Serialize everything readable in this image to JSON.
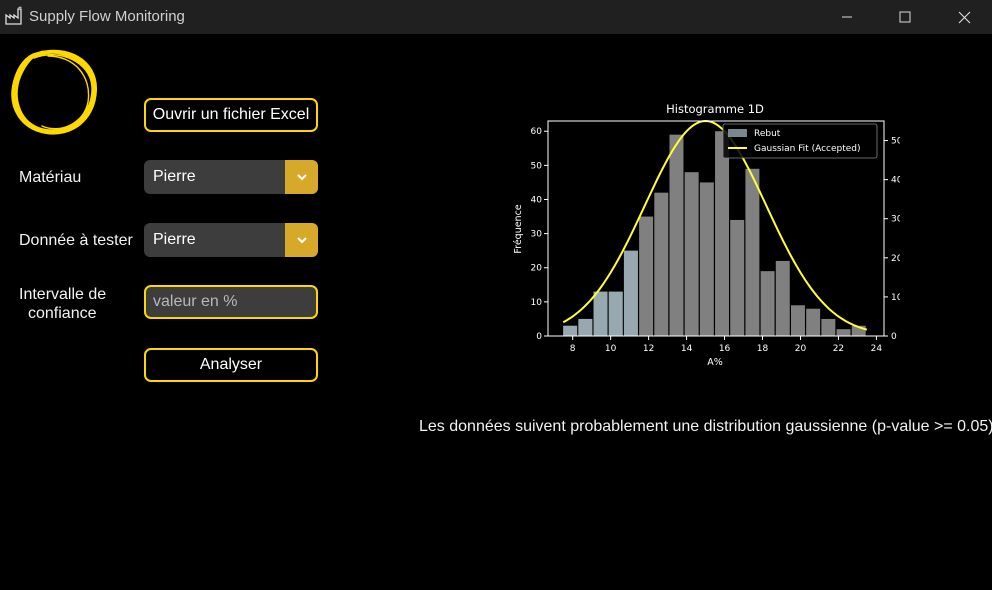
{
  "window": {
    "title": "Supply Flow Monitoring",
    "controls": [
      "minimize",
      "maximize",
      "close"
    ]
  },
  "form": {
    "open_excel_label": "Ouvrir un fichier Excel",
    "material_label": "Matériau",
    "material_value": "Pierre",
    "data_label": "Donnée à tester",
    "data_value": "Pierre",
    "interval_label_line1": "Intervalle de",
    "interval_label_line2": "confiance",
    "interval_placeholder": "valeur en %",
    "analyze_label": "Analyser"
  },
  "colors": {
    "accent": "#ffd700",
    "combo_arrow": "#d7a92a",
    "bar_main": "#808080",
    "bar_rebut": "#9fb6c0",
    "fit_line": "#ffff33"
  },
  "chart_data": {
    "type": "bar",
    "title": "Histogramme 1D",
    "xlabel": "A%",
    "ylabel": "Fréquence",
    "xlim": [
      6.7,
      24.4
    ],
    "ylim": [
      0,
      63
    ],
    "y2lim": [
      0,
      55
    ],
    "x_ticks": [
      8,
      10,
      12,
      14,
      16,
      18,
      20,
      22,
      24
    ],
    "y_ticks": [
      0,
      10,
      20,
      30,
      40,
      50,
      60
    ],
    "y2_ticks": [
      0,
      10,
      20,
      30,
      40,
      50
    ],
    "bin_width": 0.8,
    "bin_starts": [
      7.5,
      8.3,
      9.1,
      9.9,
      10.7,
      11.5,
      12.3,
      13.1,
      13.9,
      14.7,
      15.5,
      16.3,
      17.1,
      17.9,
      18.7,
      19.5,
      20.3,
      21.1,
      21.9,
      22.7
    ],
    "series": [
      {
        "name": "",
        "values": [
          3,
          5,
          13,
          13,
          25,
          35,
          42,
          59,
          48,
          45,
          60,
          34,
          49,
          19,
          22,
          9,
          8,
          5,
          2,
          3
        ]
      },
      {
        "name": "Rebut",
        "values": [
          3,
          5,
          13,
          13,
          25,
          0,
          0,
          0,
          0,
          0,
          0,
          0,
          0,
          0,
          0,
          0,
          0,
          0,
          0,
          0
        ]
      },
      {
        "name": "Gaussian Fit (Accepted)",
        "type": "line",
        "mean": 15.0,
        "std": 3.2,
        "peak": 55
      }
    ],
    "legend_placement": "top-right"
  },
  "result_text": "Les données suivent probablement une distribution gaussienne (p-value >= 0.05)"
}
